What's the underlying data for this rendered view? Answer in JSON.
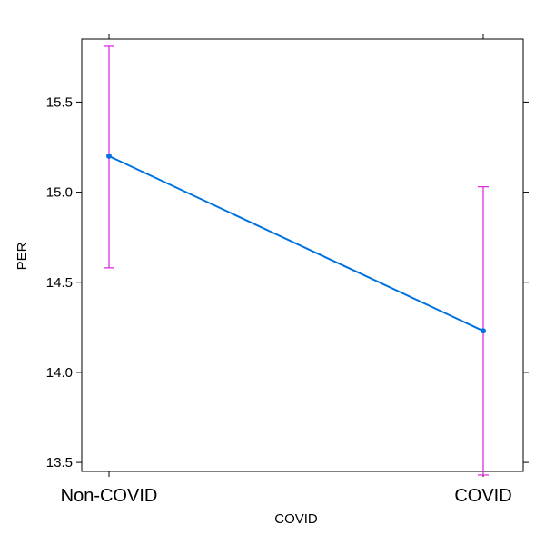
{
  "chart_data": {
    "type": "line",
    "title": "",
    "xlabel": "COVID",
    "ylabel": "PER",
    "categories": [
      "Non-COVID",
      "COVID"
    ],
    "series": [
      {
        "values": [
          15.2,
          14.23
        ],
        "lower": [
          14.58,
          13.43
        ],
        "upper": [
          15.81,
          15.03
        ]
      }
    ],
    "ylim": [
      13.45,
      15.85
    ],
    "yticks": [
      13.5,
      14.0,
      14.5,
      15.0,
      15.5
    ],
    "ytick_labels": [
      "13.5",
      "14.0",
      "14.5",
      "15.0",
      "15.5"
    ],
    "grid": false,
    "colors": {
      "line": "#0072e0",
      "errorbar": "#e020e0",
      "axis": "#000000"
    }
  }
}
